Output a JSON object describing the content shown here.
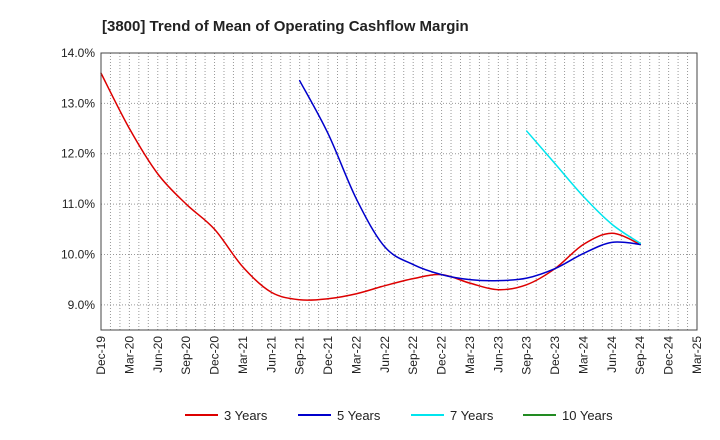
{
  "chart_data": {
    "type": "line",
    "title": "[3800]  Trend of Mean of Operating Cashflow Margin",
    "xlabel": "",
    "ylabel": "",
    "x_ticks": [
      "Dec-19",
      "Mar-20",
      "Jun-20",
      "Sep-20",
      "Dec-20",
      "Mar-21",
      "Jun-21",
      "Sep-21",
      "Dec-21",
      "Mar-22",
      "Jun-22",
      "Sep-22",
      "Dec-22",
      "Mar-23",
      "Jun-23",
      "Sep-23",
      "Dec-23",
      "Mar-24",
      "Jun-24",
      "Sep-24",
      "Dec-24",
      "Mar-25"
    ],
    "y_ticks": [
      "9.0%",
      "10.0%",
      "11.0%",
      "12.0%",
      "13.0%",
      "14.0%"
    ],
    "ylim": [
      8.5,
      14.0
    ],
    "grid": true,
    "legend_position": "bottom",
    "series": [
      {
        "name": "3 Years",
        "color": "#dd0000",
        "x": [
          "Dec-19",
          "Mar-20",
          "Jun-20",
          "Sep-20",
          "Dec-20",
          "Mar-21",
          "Jun-21",
          "Sep-21",
          "Dec-21",
          "Mar-22",
          "Jun-22",
          "Sep-22",
          "Dec-22",
          "Mar-23",
          "Jun-23",
          "Sep-23",
          "Dec-23",
          "Mar-24",
          "Jun-24",
          "Sep-24"
        ],
        "values": [
          13.6,
          12.5,
          11.6,
          11.0,
          10.5,
          9.75,
          9.25,
          9.1,
          9.12,
          9.22,
          9.38,
          9.52,
          9.6,
          9.43,
          9.3,
          9.4,
          9.72,
          10.2,
          10.42,
          10.2
        ]
      },
      {
        "name": "5 Years",
        "color": "#0000cc",
        "x": [
          "Sep-21",
          "Dec-21",
          "Mar-22",
          "Jun-22",
          "Sep-22",
          "Dec-22",
          "Mar-23",
          "Jun-23",
          "Sep-23",
          "Dec-23",
          "Mar-24",
          "Jun-24",
          "Sep-24"
        ],
        "values": [
          13.45,
          12.4,
          11.1,
          10.15,
          9.8,
          9.6,
          9.5,
          9.48,
          9.53,
          9.72,
          10.02,
          10.24,
          10.2
        ]
      },
      {
        "name": "7 Years",
        "color": "#00e5ee",
        "x": [
          "Sep-23",
          "Dec-23",
          "Mar-24",
          "Jun-24",
          "Sep-24"
        ],
        "values": [
          12.45,
          11.8,
          11.15,
          10.6,
          10.22
        ]
      },
      {
        "name": "10 Years",
        "color": "#228b22",
        "x": [],
        "values": []
      }
    ]
  }
}
